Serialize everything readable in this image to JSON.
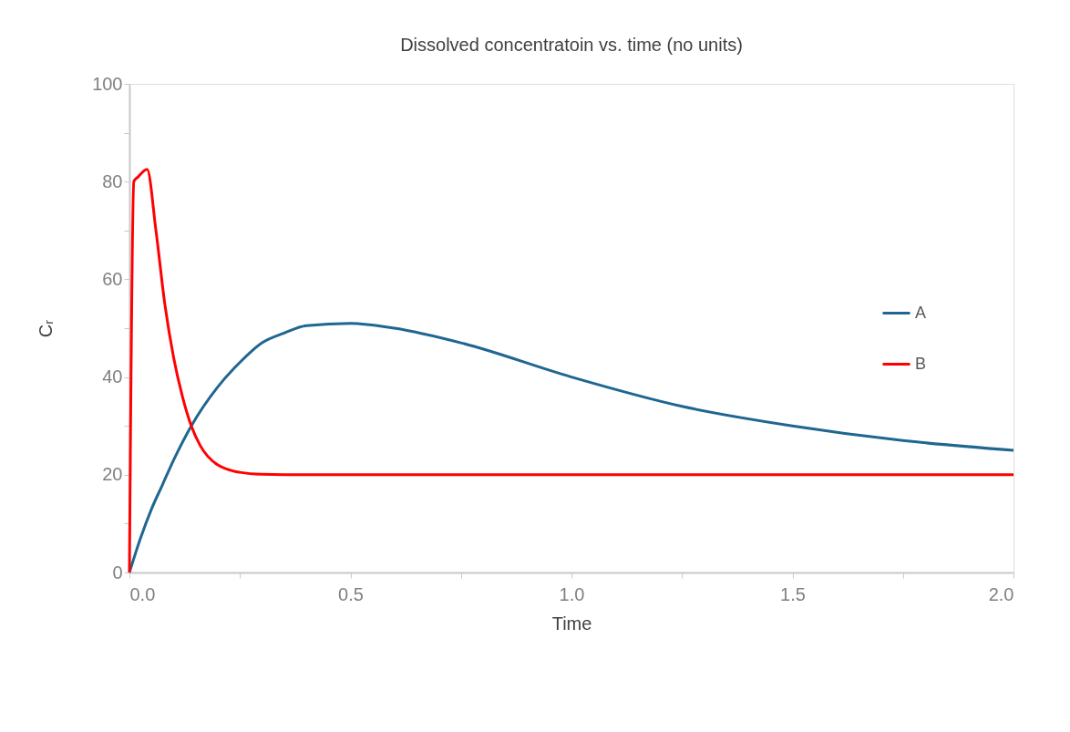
{
  "chart_data": {
    "type": "line",
    "title": "Dissolved concentratoin vs. time (no units)",
    "xlabel": "Time",
    "ylabel": "Cᵣ",
    "xlim": [
      0,
      2
    ],
    "ylim": [
      0,
      100
    ],
    "xticks": [
      {
        "value": 0,
        "label": "0.0"
      },
      {
        "value": 0.25,
        "label": null
      },
      {
        "value": 0.5,
        "label": "0.5"
      },
      {
        "value": 0.75,
        "label": null
      },
      {
        "value": 1,
        "label": "1.0"
      },
      {
        "value": 1.25,
        "label": null
      },
      {
        "value": 1.5,
        "label": "1.5"
      },
      {
        "value": 1.75,
        "label": null
      },
      {
        "value": 2,
        "label": "2.0"
      }
    ],
    "yticks": [
      0,
      {
        "value": 10,
        "label": null
      },
      20,
      {
        "value": 30,
        "label": null
      },
      40,
      {
        "value": 50,
        "label": null
      },
      60,
      {
        "value": 70,
        "label": null
      },
      80,
      {
        "value": 90,
        "label": null
      },
      100
    ],
    "grid": false,
    "legend": "right",
    "marker": "none",
    "line_style": "solid",
    "series": [
      {
        "name": "A",
        "color": "#1f6690",
        "x": [
          0,
          0.025,
          0.05,
          0.075,
          0.1,
          0.14,
          0.2,
          0.25,
          0.3,
          0.35,
          0.4,
          0.5,
          0.6,
          0.75,
          1.0,
          1.25,
          1.5,
          1.75,
          2.0
        ],
        "values": [
          0,
          7,
          13,
          18,
          23,
          30,
          38,
          43,
          47,
          49,
          50.5,
          51,
          50,
          47,
          40,
          34,
          30,
          27,
          25
        ]
      },
      {
        "name": "B",
        "color": "#ff0000",
        "x": [
          0,
          0.01,
          0.02,
          0.04,
          0.06,
          0.08,
          0.1,
          0.12,
          0.14,
          0.16,
          0.2,
          0.25,
          0.3,
          0.4,
          1.0,
          2.0
        ],
        "values": [
          0,
          80,
          81,
          82.5,
          70,
          55,
          44,
          36,
          30,
          26,
          22,
          20.5,
          20.1,
          20,
          20,
          20
        ]
      }
    ]
  }
}
